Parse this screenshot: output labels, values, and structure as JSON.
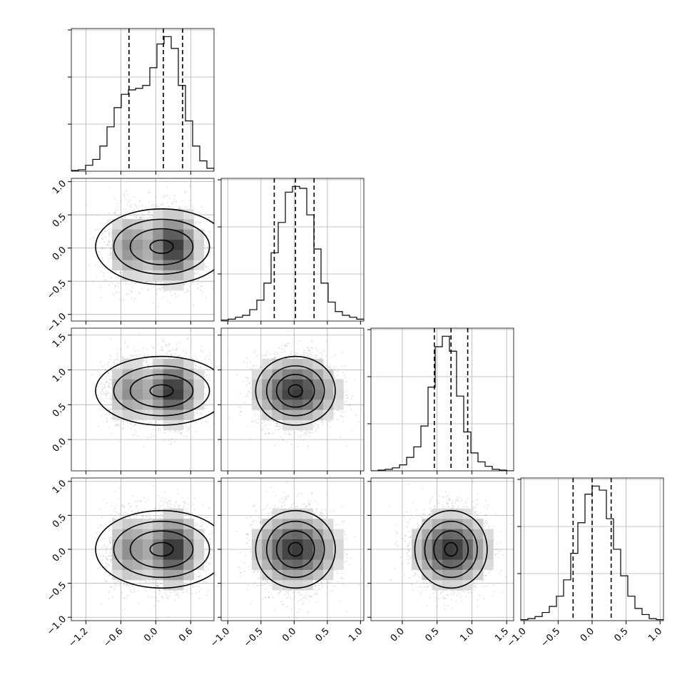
{
  "chart_data": {
    "type": "corner",
    "n_params": 4,
    "grid": true,
    "point_color": "#9a9a9a",
    "line_color": "#000000",
    "density_levels": [
      0.12,
      0.39,
      0.68,
      0.86
    ],
    "params": [
      {
        "range": [
          -1.45,
          1.0
        ],
        "x_ticks": [
          -1.2,
          -0.6,
          0.0,
          0.6
        ],
        "x_tick_labels": [
          "−1.2",
          "−0.6",
          "0.0",
          "0.6"
        ],
        "y_ticks": [],
        "y_tick_labels": [],
        "quantiles": [
          -0.46,
          0.13,
          0.46
        ],
        "hist": {
          "edges_start": -1.45,
          "bin_width": 0.1225,
          "counts": [
            0.5,
            1,
            4,
            8,
            17,
            30,
            43,
            52,
            55,
            56,
            58,
            70,
            86,
            91,
            83,
            58,
            34,
            17,
            7,
            2
          ]
        },
        "center": [
          -0.1,
          0.0
        ],
        "spread": [
          0.42,
          0.32
        ]
      },
      {
        "range": [
          -1.1,
          1.05
        ],
        "x_ticks": [
          -1.0,
          -0.5,
          0.0,
          0.5,
          1.0
        ],
        "x_tick_labels": [
          "−1.0",
          "−0.5",
          "0.0",
          "0.5",
          "1.0"
        ],
        "y_ticks": [
          -1.0,
          -0.5,
          0.0,
          0.5,
          1.0
        ],
        "y_tick_labels": [
          "−1.0",
          "−0.5",
          "0.0",
          "0.5",
          "1.0"
        ],
        "quantiles": [
          -0.3,
          0.02,
          0.3
        ],
        "hist": {
          "edges_start": -1.1,
          "bin_width": 0.1075,
          "counts": [
            0.5,
            1,
            2,
            3,
            6,
            11,
            20,
            36,
            52,
            68,
            71,
            70,
            56,
            38,
            20,
            10,
            5,
            3,
            2,
            1
          ]
        },
        "center": [
          0.02,
          0.02
        ],
        "spread": [
          0.3,
          0.3
        ]
      },
      {
        "range": [
          -0.45,
          1.6
        ],
        "x_ticks": [
          0.0,
          0.5,
          1.0,
          1.5
        ],
        "x_tick_labels": [
          "0.0",
          "0.5",
          "1.0",
          "1.5"
        ],
        "y_ticks": [
          0.0,
          0.5,
          1.0,
          1.5
        ],
        "y_tick_labels": [
          "0.0",
          "0.5",
          "1.0",
          "1.5"
        ],
        "quantiles": [
          0.46,
          0.7,
          0.94
        ],
        "hist": {
          "edges_start": -0.45,
          "bin_width": 0.1025,
          "counts": [
            0,
            0.5,
            1,
            2,
            4,
            9,
            16,
            30,
            56,
            83,
            90,
            80,
            50,
            26,
            12,
            6,
            3,
            1,
            0.5,
            0
          ]
        },
        "center": [
          0.7,
          0.7
        ],
        "spread": [
          0.26,
          0.26
        ]
      },
      {
        "range": [
          -1.05,
          1.05
        ],
        "x_ticks": [
          -1.0,
          -0.5,
          0.0,
          0.5,
          1.0
        ],
        "x_tick_labels": [
          "−1.0",
          "−0.5",
          "0.0",
          "0.5",
          "1.0"
        ],
        "y_ticks": [
          -1.0,
          -0.5,
          0.0,
          0.5,
          1.0
        ],
        "y_tick_labels": [
          "−1.0",
          "−0.5",
          "0.0",
          "0.5",
          "1.0"
        ],
        "quantiles": [
          -0.28,
          0.0,
          0.28
        ],
        "hist": {
          "edges_start": -1.05,
          "bin_width": 0.105,
          "counts": [
            0.5,
            1,
            2,
            4,
            7,
            12,
            20,
            33,
            48,
            62,
            66,
            64,
            50,
            35,
            22,
            12,
            6,
            3,
            1,
            0.5
          ]
        },
        "center": [
          0.0,
          0.0
        ],
        "spread": [
          0.3,
          0.3
        ]
      }
    ]
  }
}
